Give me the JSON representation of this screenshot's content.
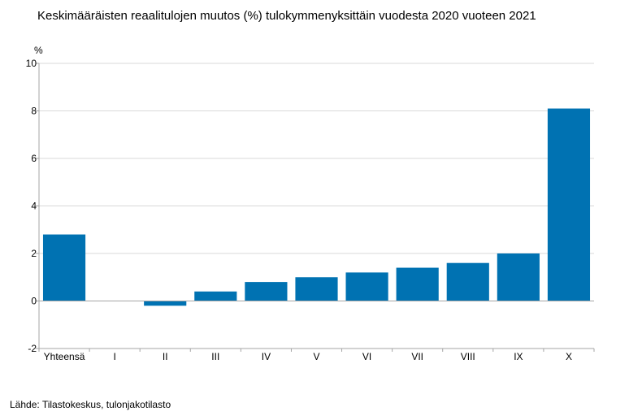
{
  "title": "Keskimääräisten reaalitulojen muutos (%) tulokymmenyksittäin vuodesta 2020 vuoteen 2021",
  "source": "Lähde: Tilastokeskus, tulonjakotilasto",
  "chart_data": {
    "type": "bar",
    "title": "Keskimääräisten reaalitulojen muutos (%) tulokymmenyksittäin vuodesta 2020 vuoteen 2021",
    "ylabel": "%",
    "xlabel": "",
    "categories": [
      "Yhteensä",
      "I",
      "II",
      "III",
      "IV",
      "V",
      "VI",
      "VII",
      "VIII",
      "IX",
      "X"
    ],
    "values": [
      2.8,
      0,
      -0.2,
      0.4,
      0.8,
      1.0,
      1.2,
      1.4,
      1.6,
      2.0,
      8.1
    ],
    "ylim": [
      -2,
      10
    ],
    "yticks": [
      -2,
      0,
      2,
      4,
      6,
      8,
      10
    ],
    "grid": true,
    "legend": "none",
    "bar_color": "#0072b2",
    "grid_color": "#d9d9d9",
    "axis_color": "#a6a6a6"
  }
}
